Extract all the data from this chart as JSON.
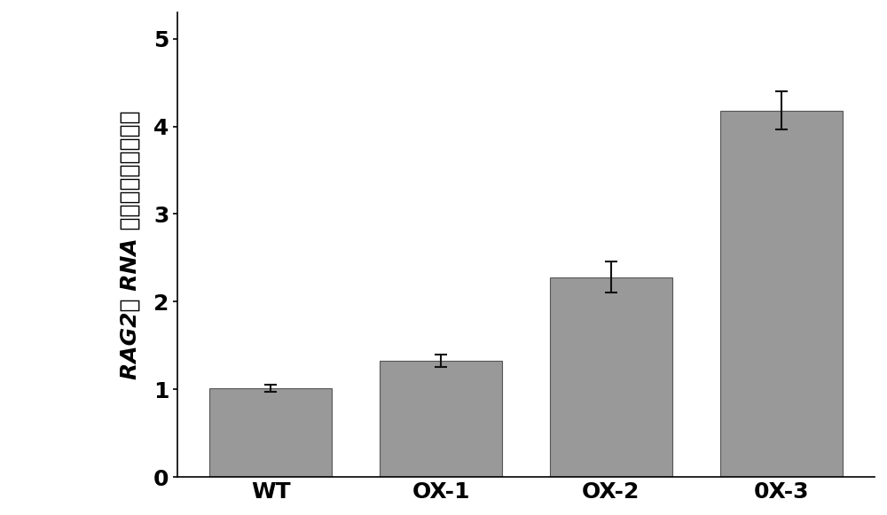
{
  "categories": [
    "WT",
    "OX-1",
    "OX-2",
    "0X-3"
  ],
  "values": [
    1.01,
    1.33,
    2.28,
    4.18
  ],
  "errors": [
    0.04,
    0.07,
    0.18,
    0.22
  ],
  "bar_color": "#999999",
  "bar_edgecolor": "#555555",
  "background_color": "#ffffff",
  "ylim": [
    0,
    5.3
  ],
  "yticks": [
    0,
    1,
    2,
    3,
    4,
    5
  ],
  "ylabel_full": "RAG2在 RNA 水平上的表达量检测",
  "xlabel": "",
  "title": "",
  "bar_width": 0.72,
  "tick_fontsize": 18,
  "label_fontsize": 18,
  "error_capsize": 5,
  "error_linewidth": 1.5,
  "error_color": "#111111"
}
